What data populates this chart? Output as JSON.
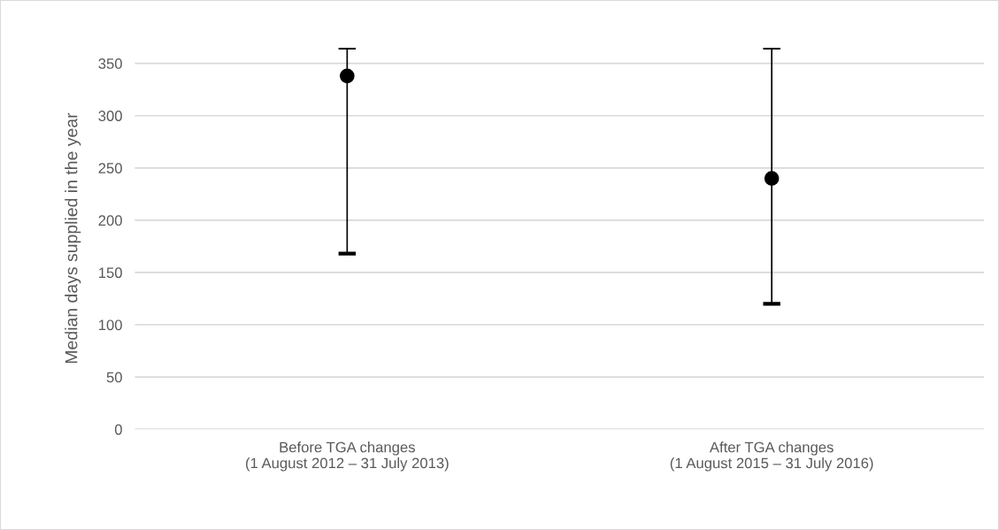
{
  "chart_data": {
    "type": "scatter",
    "ylabel": "Median days supplied in the year",
    "categories": [
      "Before TGA changes\n(1 August 2012 – 31 July 2013)",
      "After TGA changes\n(1 August 2015 – 31 July 2016)"
    ],
    "values": [
      338,
      240
    ],
    "errors": [
      [
        168,
        365
      ],
      [
        120,
        365
      ]
    ],
    "color": "#000000",
    "marker": "circle",
    "ylim": [
      0,
      365
    ],
    "yticks": [
      0,
      50,
      100,
      150,
      200,
      250,
      300,
      350
    ],
    "grid": "y"
  }
}
